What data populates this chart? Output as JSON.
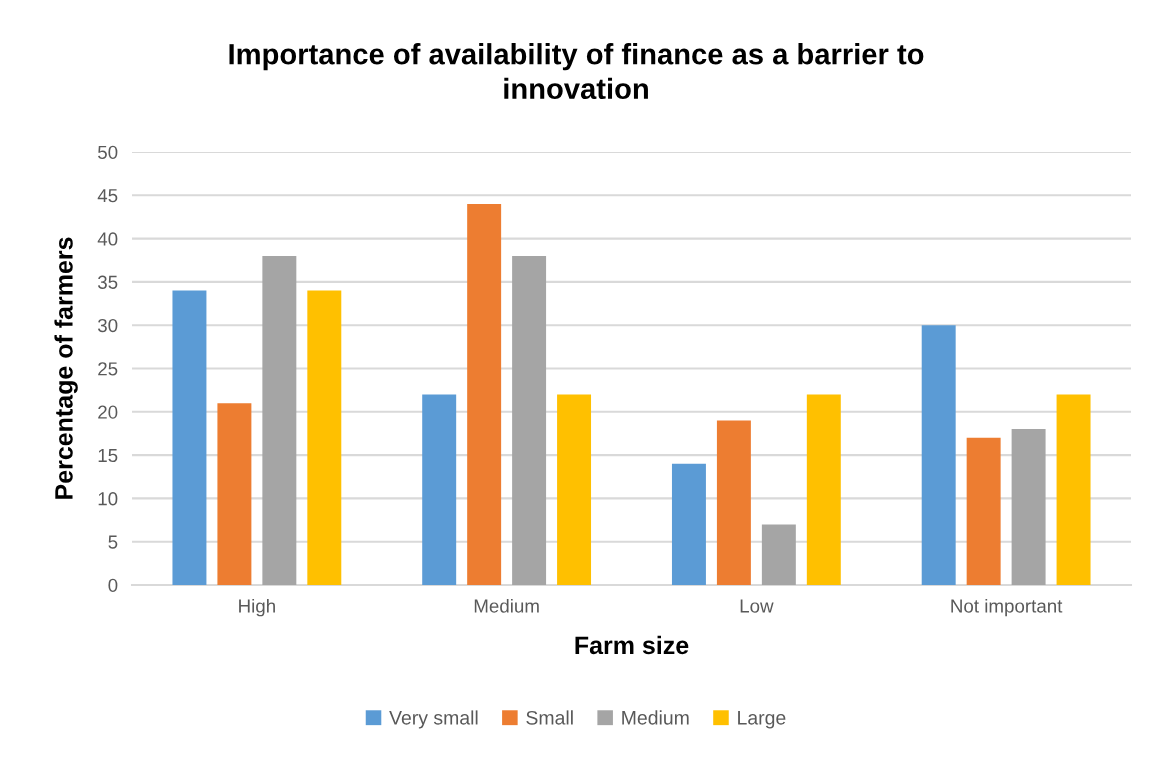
{
  "chart_data": {
    "type": "bar",
    "title": "Importance of availability of finance as a barrier to innovation",
    "xlabel": "Farm size",
    "ylabel": "Percentage of farmers",
    "categories": [
      "High",
      "Medium",
      "Low",
      "Not important"
    ],
    "series": [
      {
        "name": "Very small",
        "color": "#5b9bd5",
        "values": [
          34,
          22,
          14,
          30
        ]
      },
      {
        "name": "Small",
        "color": "#ed7d31",
        "values": [
          21,
          44,
          19,
          17
        ]
      },
      {
        "name": "Medium",
        "color": "#a5a5a5",
        "values": [
          38,
          38,
          7,
          18
        ]
      },
      {
        "name": "Large",
        "color": "#ffc000",
        "values": [
          34,
          22,
          22,
          22
        ]
      }
    ],
    "ylim": [
      0,
      50
    ],
    "yticks": [
      0,
      5,
      10,
      15,
      20,
      25,
      30,
      35,
      40,
      45,
      50
    ],
    "grid": "y",
    "legend": "bottom"
  }
}
